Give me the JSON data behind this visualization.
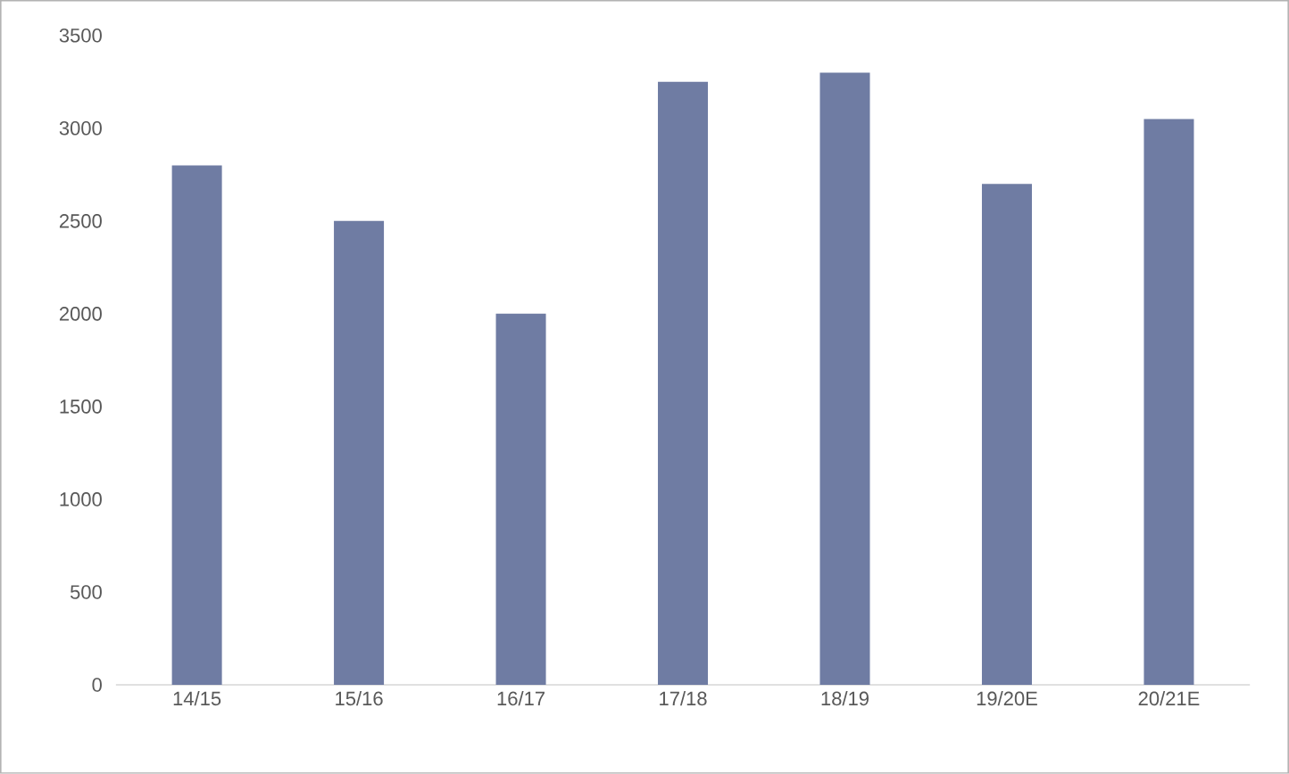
{
  "chart_data": {
    "type": "bar",
    "categories": [
      "14/15",
      "15/16",
      "16/17",
      "17/18",
      "18/19",
      "19/20E",
      "20/21E"
    ],
    "values": [
      2800,
      2500,
      2000,
      3250,
      3300,
      2700,
      3050
    ],
    "color": "#6f7ca3",
    "ylim": [
      0,
      3500
    ],
    "yticks": [
      0,
      500,
      1000,
      1500,
      2000,
      2500,
      3000,
      3500
    ],
    "grid": false
  }
}
